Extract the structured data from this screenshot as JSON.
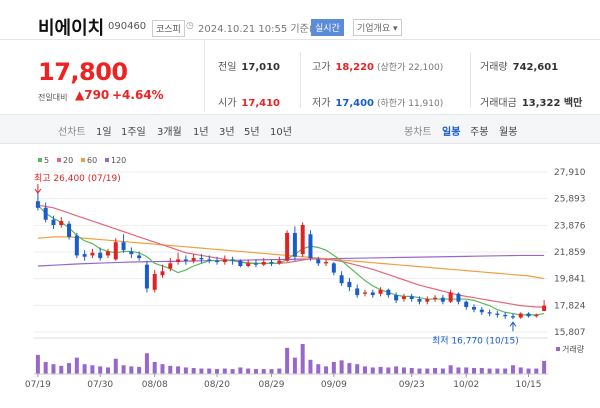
{
  "header": {
    "name": "비에이치",
    "code": "090460",
    "market": "코스피",
    "datetime": "2024.10.21 10:55 기준(장중)",
    "realtime": "실시간",
    "company_info": "기업개요 ▾"
  },
  "price": {
    "current": "17,800",
    "change_label": "전일대비",
    "change_amount": "▲790",
    "change_percent": "+4.64%"
  },
  "stats": {
    "prev_close": {
      "label": "전일",
      "value": "17,010"
    },
    "high": {
      "label": "고가",
      "value": "18,220",
      "sub": "(상한가 22,100)"
    },
    "volume": {
      "label": "거래량",
      "value": "742,601"
    },
    "open": {
      "label": "시가",
      "value": "17,410"
    },
    "low": {
      "label": "저가",
      "value": "17,400",
      "sub": "(하한가 11,910)"
    },
    "amount": {
      "label": "거래대금",
      "value": "13,322 백만"
    }
  },
  "tabs": {
    "line_chart": "선차트",
    "periods": [
      "1일",
      "1주일",
      "3개월",
      "1년",
      "3년",
      "5년",
      "10년"
    ],
    "candle_chart": "봉차트",
    "candle_periods": [
      "일봉",
      "주봉",
      "월봉"
    ],
    "active_candle": "일봉"
  },
  "colors": {
    "up": "#e22222",
    "down": "#1a5ccc",
    "ma5": "#5cb85c",
    "ma20": "#e8667a",
    "ma60": "#f0a040",
    "ma120": "#9966cc"
  },
  "chart_data": {
    "type": "candlestick",
    "legend": [
      "5",
      "20",
      "60",
      "120"
    ],
    "y_ticks": [
      "27,910",
      "25,893",
      "23,876",
      "21,859",
      "19,841",
      "17,824",
      "15,807"
    ],
    "ylim": [
      15807,
      27910
    ],
    "x_ticks": [
      "07/19",
      "07/30",
      "08/08",
      "08/20",
      "08/29",
      "09/09",
      "09/23",
      "10/02",
      "10/15"
    ],
    "high_annotation": "최고 26,400 (07/19)",
    "low_annotation": "최저 16,770 (10/15)",
    "volume_label": "거래량",
    "candles": [
      [
        25700,
        25200,
        26400,
        25000
      ],
      [
        25200,
        24300,
        25600,
        24100
      ],
      [
        24300,
        23900,
        24600,
        23600
      ],
      [
        23900,
        24200,
        24500,
        23700
      ],
      [
        24000,
        23000,
        24200,
        22800
      ],
      [
        23100,
        21600,
        23300,
        21400
      ],
      [
        21700,
        21500,
        22000,
        21200
      ],
      [
        21600,
        21800,
        22100,
        21400
      ],
      [
        21800,
        21400,
        22200,
        21200
      ],
      [
        21600,
        21900,
        22100,
        21400
      ],
      [
        21300,
        22600,
        22900,
        21200
      ],
      [
        22600,
        22000,
        23200,
        21800
      ],
      [
        21900,
        21700,
        22200,
        21400
      ],
      [
        21600,
        21400,
        21900,
        21200
      ],
      [
        20900,
        19100,
        21200,
        18800
      ],
      [
        19000,
        20200,
        20500,
        18800
      ],
      [
        20100,
        20400,
        20900,
        19900
      ],
      [
        20600,
        21000,
        21400,
        20400
      ],
      [
        21100,
        21300,
        21800,
        20900
      ],
      [
        21300,
        21200,
        21600,
        20900
      ],
      [
        21200,
        21400,
        21700,
        21000
      ],
      [
        21400,
        21300,
        21700,
        21000
      ],
      [
        21300,
        21200,
        21600,
        21000
      ],
      [
        21200,
        21100,
        21500,
        20900
      ],
      [
        21100,
        21300,
        21600,
        20900
      ],
      [
        21300,
        21200,
        21500,
        20900
      ],
      [
        21200,
        20800,
        21300,
        20700
      ],
      [
        20800,
        21000,
        21300,
        20700
      ],
      [
        21000,
        20900,
        21300,
        20700
      ],
      [
        20900,
        21100,
        21400,
        20800
      ],
      [
        21100,
        21000,
        21300,
        20800
      ],
      [
        21000,
        21200,
        21500,
        20900
      ],
      [
        21200,
        23300,
        23500,
        21100
      ],
      [
        23300,
        21500,
        23800,
        21200
      ],
      [
        21700,
        23900,
        24100,
        21500
      ],
      [
        23200,
        21400,
        23500,
        21200
      ],
      [
        21300,
        21000,
        21500,
        20800
      ],
      [
        21000,
        21100,
        21300,
        20800
      ],
      [
        21000,
        20300,
        21100,
        20100
      ],
      [
        20100,
        19500,
        20400,
        19300
      ],
      [
        19600,
        19200,
        19900,
        18900
      ],
      [
        19100,
        18600,
        19400,
        18400
      ],
      [
        18700,
        18800,
        19000,
        18500
      ],
      [
        18800,
        18600,
        19000,
        18400
      ],
      [
        18700,
        19000,
        19200,
        18500
      ],
      [
        19000,
        18600,
        19100,
        18400
      ],
      [
        18600,
        18200,
        18800,
        18000
      ],
      [
        18300,
        18500,
        18700,
        18100
      ],
      [
        18500,
        18300,
        18700,
        18100
      ],
      [
        18300,
        18100,
        18500,
        17900
      ],
      [
        18100,
        18300,
        18500,
        17900
      ],
      [
        18300,
        18400,
        18600,
        18100
      ],
      [
        18400,
        18100,
        18600,
        17900
      ],
      [
        18100,
        18800,
        19000,
        18000
      ],
      [
        18700,
        18100,
        18800,
        17900
      ],
      [
        18100,
        17700,
        18200,
        17500
      ],
      [
        17700,
        17500,
        17900,
        17300
      ],
      [
        17500,
        17300,
        17700,
        17100
      ],
      [
        17300,
        17200,
        17500,
        17000
      ],
      [
        17200,
        17100,
        17400,
        16900
      ],
      [
        17100,
        17000,
        17300,
        16800
      ],
      [
        17000,
        16900,
        17200,
        16770
      ],
      [
        16900,
        17200,
        17300,
        16800
      ],
      [
        17200,
        17000,
        17300,
        16900
      ],
      [
        17000,
        17100,
        17200,
        16900
      ],
      [
        17400,
        17800,
        18220,
        17400
      ]
    ],
    "volume": [
      35,
      22,
      18,
      15,
      20,
      30,
      18,
      16,
      14,
      12,
      28,
      16,
      14,
      13,
      38,
      22,
      18,
      15,
      14,
      12,
      11,
      10,
      10,
      9,
      10,
      9,
      12,
      10,
      9,
      9,
      9,
      10,
      48,
      30,
      55,
      26,
      18,
      14,
      22,
      25,
      20,
      18,
      14,
      12,
      13,
      12,
      14,
      12,
      11,
      10,
      10,
      11,
      10,
      16,
      12,
      12,
      11,
      11,
      10,
      10,
      10,
      16,
      12,
      10,
      10,
      24
    ],
    "ma5": [
      25400,
      24800,
      24400,
      24100,
      23700,
      23100,
      22700,
      22500,
      22100,
      21900,
      21800,
      21900,
      21900,
      21800,
      21500,
      21000,
      20800,
      20600,
      20300,
      20500,
      20800,
      21000,
      21200,
      21200,
      21200,
      21200,
      21100,
      21000,
      21000,
      21000,
      21000,
      21000,
      21300,
      21700,
      22100,
      22300,
      22200,
      22000,
      21600,
      21200,
      20700,
      20200,
      19700,
      19300,
      19000,
      18800,
      18600,
      18500,
      18500,
      18400,
      18300,
      18300,
      18300,
      18300,
      18300,
      18300,
      18200,
      18000,
      17800,
      17500,
      17300,
      17200,
      17100,
      17100,
      17100,
      17200
    ],
    "ma20": [
      25400,
      25300,
      25200,
      25000,
      24800,
      24600,
      24400,
      24200,
      24000,
      23800,
      23600,
      23400,
      23200,
      23000,
      22800,
      22600,
      22400,
      22200,
      22000,
      21800,
      21700,
      21600,
      21500,
      21400,
      21300,
      21200,
      21100,
      21050,
      21000,
      21000,
      21000,
      21000,
      21050,
      21150,
      21250,
      21350,
      21350,
      21300,
      21250,
      21150,
      21000,
      20850,
      20700,
      20550,
      20350,
      20150,
      19950,
      19750,
      19550,
      19350,
      19200,
      19050,
      18900,
      18750,
      18600,
      18500,
      18400,
      18300,
      18200,
      18100,
      18000,
      17900,
      17800,
      17750,
      17700,
      17700
    ],
    "ma60": [
      22900,
      22950,
      23000,
      23000,
      23000,
      22950,
      22900,
      22850,
      22800,
      22750,
      22700,
      22650,
      22600,
      22550,
      22500,
      22450,
      22400,
      22350,
      22300,
      22250,
      22200,
      22150,
      22100,
      22050,
      22000,
      21950,
      21900,
      21850,
      21800,
      21750,
      21700,
      21650,
      21600,
      21550,
      21500,
      21450,
      21400,
      21350,
      21300,
      21250,
      21200,
      21150,
      21100,
      21050,
      21000,
      20950,
      20900,
      20850,
      20800,
      20750,
      20700,
      20650,
      20600,
      20550,
      20500,
      20450,
      20400,
      20350,
      20300,
      20250,
      20200,
      20150,
      20100,
      20050,
      19950,
      19850
    ],
    "ma120": [
      20800,
      20830,
      20860,
      20890,
      20920,
      20950,
      20980,
      21000,
      21020,
      21040,
      21060,
      21080,
      21100,
      21110,
      21120,
      21130,
      21140,
      21150,
      21160,
      21170,
      21180,
      21190,
      21200,
      21210,
      21220,
      21230,
      21240,
      21250,
      21260,
      21270,
      21280,
      21290,
      21300,
      21310,
      21320,
      21330,
      21340,
      21350,
      21360,
      21370,
      21380,
      21390,
      21400,
      21410,
      21420,
      21430,
      21440,
      21450,
      21460,
      21470,
      21480,
      21490,
      21500,
      21510,
      21520,
      21530,
      21540,
      21550,
      21560,
      21570,
      21580,
      21590,
      21600,
      21600,
      21600,
      21600
    ]
  }
}
